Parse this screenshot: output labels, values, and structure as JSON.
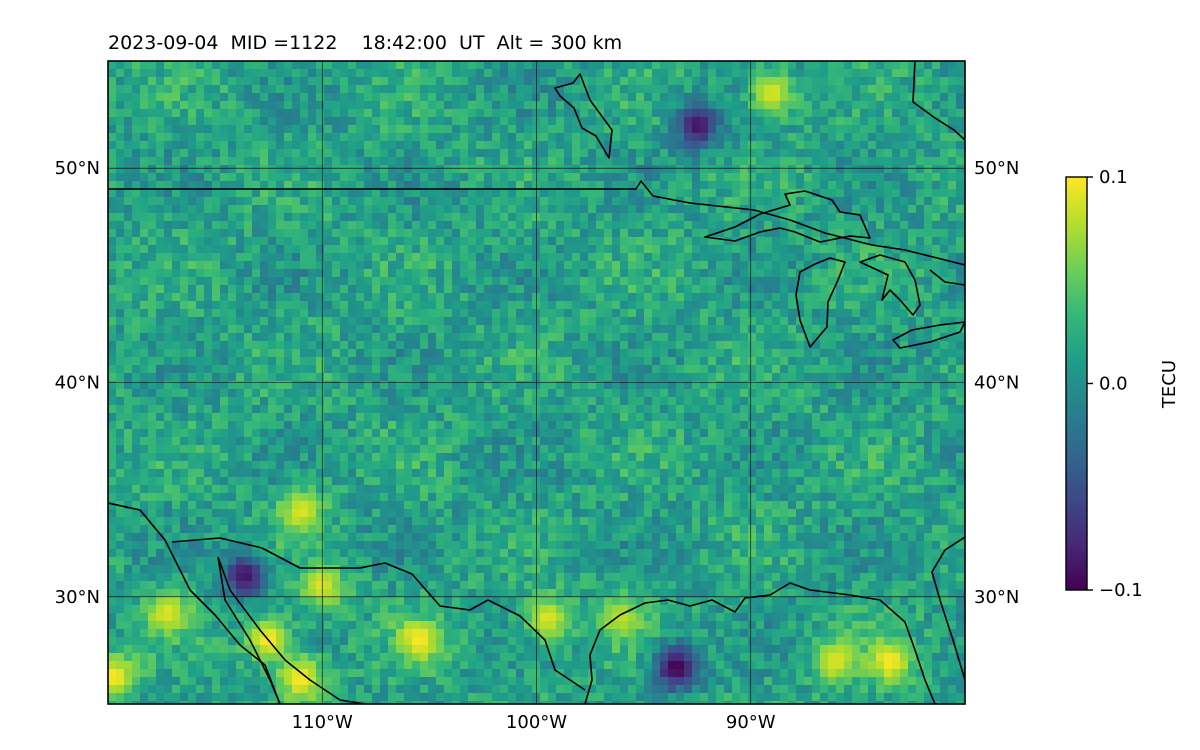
{
  "chart_data": {
    "type": "heatmap",
    "title": "2023-09-04  MID =1122    18:42:00  UT  Alt = 300 km",
    "projection": "geographic map",
    "lon_range": [
      -120,
      -80
    ],
    "lat_range": [
      25,
      55
    ],
    "lon_ticks": [
      {
        "value": -110,
        "label": "110°W"
      },
      {
        "value": -100,
        "label": "100°W"
      },
      {
        "value": -90,
        "label": "90°W"
      }
    ],
    "lat_ticks": [
      {
        "value": 50,
        "label": "50°N"
      },
      {
        "value": 40,
        "label": "40°N"
      },
      {
        "value": 30,
        "label": "30°N"
      }
    ],
    "grid": true,
    "colorbar": {
      "label": "TECU",
      "colormap": "viridis",
      "range": [
        -0.1,
        0.1
      ],
      "ticks": [
        {
          "value": 0.1,
          "label": "0.1"
        },
        {
          "value": 0.0,
          "label": "0.0"
        },
        {
          "value": -0.1,
          "label": "−0.1"
        }
      ],
      "colors": [
        "#440154",
        "#482878",
        "#3e4989",
        "#31688e",
        "#26828e",
        "#1f9e89",
        "#35b779",
        "#6ece58",
        "#b5de2b",
        "#fde725"
      ]
    },
    "anomalies": [
      {
        "lon": -113.6,
        "lat": 31.0,
        "value": -0.09
      },
      {
        "lon": -93.5,
        "lat": 26.7,
        "value": -0.1
      },
      {
        "lon": -92.5,
        "lat": 52.0,
        "value": -0.09
      },
      {
        "lon": -112.5,
        "lat": 28.0,
        "value": 0.1
      },
      {
        "lon": -111.0,
        "lat": 26.2,
        "value": 0.1
      },
      {
        "lon": -119.7,
        "lat": 26.3,
        "value": 0.1
      },
      {
        "lon": -110.0,
        "lat": 30.5,
        "value": 0.09
      },
      {
        "lon": -111.0,
        "lat": 34.0,
        "value": 0.09
      },
      {
        "lon": -105.5,
        "lat": 28.0,
        "value": 0.1
      },
      {
        "lon": -99.5,
        "lat": 29.0,
        "value": 0.09
      },
      {
        "lon": -89.0,
        "lat": 53.5,
        "value": 0.09
      },
      {
        "lon": -83.5,
        "lat": 27.0,
        "value": 0.1
      },
      {
        "lon": -86.0,
        "lat": 27.0,
        "value": 0.09
      },
      {
        "lon": -117.2,
        "lat": 29.3,
        "value": 0.09
      },
      {
        "lon": -96.0,
        "lat": 29.0,
        "value": 0.08
      }
    ]
  }
}
